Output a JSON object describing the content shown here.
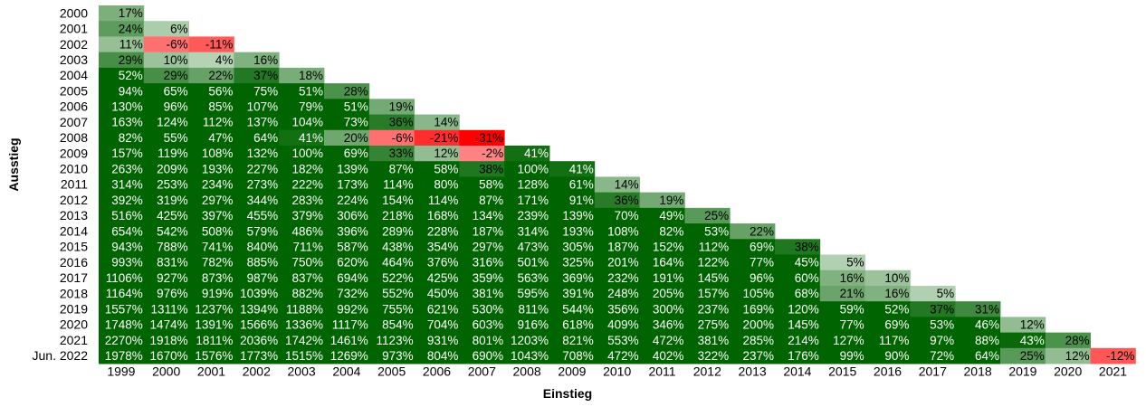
{
  "chart_data": {
    "type": "heatmap",
    "title": "",
    "xlabel": "Einstieg",
    "ylabel": "Ausstieg",
    "x_categories": [
      "1999",
      "2000",
      "2001",
      "2002",
      "2003",
      "2004",
      "2005",
      "2006",
      "2007",
      "2008",
      "2009",
      "2010",
      "2011",
      "2012",
      "2013",
      "2014",
      "2015",
      "2016",
      "2017",
      "2018",
      "2019",
      "2020",
      "2021"
    ],
    "y_categories": [
      "2000",
      "2001",
      "2002",
      "2003",
      "2004",
      "2005",
      "2006",
      "2007",
      "2008",
      "2009",
      "2010",
      "2011",
      "2012",
      "2013",
      "2014",
      "2015",
      "2016",
      "2017",
      "2018",
      "2019",
      "2020",
      "2021",
      "Jun. 2022"
    ],
    "value_unit": "%",
    "rows": [
      [
        17
      ],
      [
        24,
        6
      ],
      [
        11,
        -6,
        -11
      ],
      [
        29,
        10,
        4,
        16
      ],
      [
        52,
        29,
        22,
        37,
        18
      ],
      [
        94,
        65,
        56,
        75,
        51,
        28
      ],
      [
        130,
        96,
        85,
        107,
        79,
        51,
        19
      ],
      [
        163,
        124,
        112,
        137,
        104,
        73,
        36,
        14
      ],
      [
        82,
        55,
        47,
        64,
        41,
        20,
        -6,
        -21,
        -31
      ],
      [
        157,
        119,
        108,
        132,
        100,
        69,
        33,
        12,
        -2,
        41
      ],
      [
        263,
        209,
        193,
        227,
        182,
        139,
        87,
        58,
        38,
        100,
        41
      ],
      [
        314,
        253,
        234,
        273,
        222,
        173,
        114,
        80,
        58,
        128,
        61,
        14
      ],
      [
        392,
        319,
        297,
        344,
        283,
        224,
        154,
        114,
        87,
        171,
        91,
        36,
        19
      ],
      [
        516,
        425,
        397,
        455,
        379,
        306,
        218,
        168,
        134,
        239,
        139,
        70,
        49,
        25
      ],
      [
        654,
        542,
        508,
        579,
        486,
        396,
        289,
        228,
        187,
        314,
        193,
        108,
        82,
        53,
        22
      ],
      [
        943,
        788,
        741,
        840,
        711,
        587,
        438,
        354,
        297,
        473,
        305,
        187,
        152,
        112,
        69,
        38
      ],
      [
        993,
        831,
        782,
        885,
        750,
        620,
        464,
        376,
        316,
        501,
        325,
        201,
        164,
        122,
        77,
        45,
        5
      ],
      [
        1106,
        927,
        873,
        987,
        837,
        694,
        522,
        425,
        359,
        563,
        369,
        232,
        191,
        145,
        96,
        60,
        16,
        10
      ],
      [
        1164,
        976,
        919,
        1039,
        882,
        732,
        552,
        450,
        381,
        595,
        391,
        248,
        205,
        157,
        105,
        68,
        21,
        16,
        5
      ],
      [
        1557,
        1311,
        1237,
        1394,
        1188,
        992,
        755,
        621,
        530,
        811,
        544,
        356,
        300,
        237,
        169,
        120,
        59,
        52,
        37,
        31
      ],
      [
        1748,
        1474,
        1391,
        1566,
        1336,
        1117,
        854,
        704,
        603,
        916,
        618,
        409,
        346,
        275,
        200,
        145,
        77,
        69,
        53,
        46,
        12
      ],
      [
        2270,
        1918,
        1811,
        2036,
        1742,
        1461,
        1123,
        931,
        801,
        1203,
        821,
        553,
        472,
        381,
        285,
        214,
        127,
        117,
        97,
        88,
        43,
        28
      ],
      [
        1978,
        1670,
        1576,
        1773,
        1515,
        1269,
        973,
        804,
        690,
        1043,
        708,
        472,
        402,
        322,
        237,
        176,
        99,
        90,
        72,
        64,
        25,
        12,
        -12
      ]
    ],
    "colors": {
      "strong_positive": "#006400",
      "strong_negative": "#ff0000",
      "neutral": "#ffffff"
    },
    "grid": false,
    "legend": "none"
  }
}
